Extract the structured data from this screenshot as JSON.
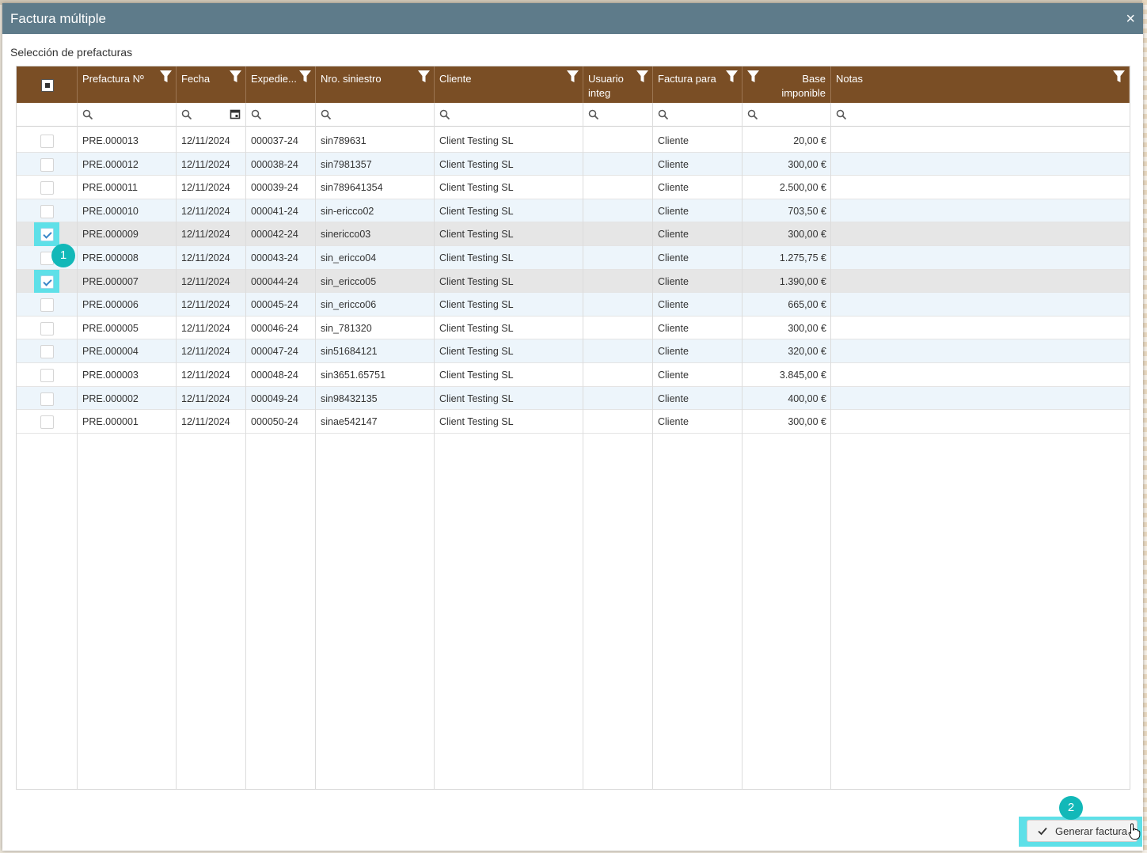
{
  "dialog": {
    "title": "Factura múltiple",
    "close_icon": "×"
  },
  "section_label": "Selección de prefacturas",
  "columns": [
    {
      "key": "prefactura",
      "label": "Prefactura Nº"
    },
    {
      "key": "fecha",
      "label": "Fecha"
    },
    {
      "key": "expediente",
      "label": "Expedie..."
    },
    {
      "key": "siniestro",
      "label": "Nro. siniestro"
    },
    {
      "key": "cliente",
      "label": "Cliente"
    },
    {
      "key": "usuario",
      "label": "Usuario integ"
    },
    {
      "key": "factura_para",
      "label": "Factura para"
    },
    {
      "key": "base",
      "label": "Base imponible"
    },
    {
      "key": "notas",
      "label": "Notas"
    }
  ],
  "rows": [
    {
      "checked": false,
      "prefactura": "PRE.000013",
      "fecha": "12/11/2024",
      "expediente": "000037-24",
      "siniestro": "sin789631",
      "cliente": "Client Testing SL",
      "usuario": "",
      "factura_para": "Cliente",
      "base": "20,00 €",
      "notas": ""
    },
    {
      "checked": false,
      "prefactura": "PRE.000012",
      "fecha": "12/11/2024",
      "expediente": "000038-24",
      "siniestro": "sin7981357",
      "cliente": "Client Testing SL",
      "usuario": "",
      "factura_para": "Cliente",
      "base": "300,00 €",
      "notas": ""
    },
    {
      "checked": false,
      "prefactura": "PRE.000011",
      "fecha": "12/11/2024",
      "expediente": "000039-24",
      "siniestro": "sin789641354",
      "cliente": "Client Testing SL",
      "usuario": "",
      "factura_para": "Cliente",
      "base": "2.500,00 €",
      "notas": ""
    },
    {
      "checked": false,
      "prefactura": "PRE.000010",
      "fecha": "12/11/2024",
      "expediente": "000041-24",
      "siniestro": "sin-ericco02",
      "cliente": "Client Testing SL",
      "usuario": "",
      "factura_para": "Cliente",
      "base": "703,50 €",
      "notas": ""
    },
    {
      "checked": true,
      "prefactura": "PRE.000009",
      "fecha": "12/11/2024",
      "expediente": "000042-24",
      "siniestro": "sinericco03",
      "cliente": "Client Testing SL",
      "usuario": "",
      "factura_para": "Cliente",
      "base": "300,00 €",
      "notas": ""
    },
    {
      "checked": false,
      "prefactura": "PRE.000008",
      "fecha": "12/11/2024",
      "expediente": "000043-24",
      "siniestro": "sin_ericco04",
      "cliente": "Client Testing SL",
      "usuario": "",
      "factura_para": "Cliente",
      "base": "1.275,75 €",
      "notas": ""
    },
    {
      "checked": true,
      "prefactura": "PRE.000007",
      "fecha": "12/11/2024",
      "expediente": "000044-24",
      "siniestro": "sin_ericco05",
      "cliente": "Client Testing SL",
      "usuario": "",
      "factura_para": "Cliente",
      "base": "1.390,00 €",
      "notas": ""
    },
    {
      "checked": false,
      "prefactura": "PRE.000006",
      "fecha": "12/11/2024",
      "expediente": "000045-24",
      "siniestro": "sin_ericco06",
      "cliente": "Client Testing SL",
      "usuario": "",
      "factura_para": "Cliente",
      "base": "665,00 €",
      "notas": ""
    },
    {
      "checked": false,
      "prefactura": "PRE.000005",
      "fecha": "12/11/2024",
      "expediente": "000046-24",
      "siniestro": "sin_781320",
      "cliente": "Client Testing SL",
      "usuario": "",
      "factura_para": "Cliente",
      "base": "300,00 €",
      "notas": ""
    },
    {
      "checked": false,
      "prefactura": "PRE.000004",
      "fecha": "12/11/2024",
      "expediente": "000047-24",
      "siniestro": "sin51684121",
      "cliente": "Client Testing SL",
      "usuario": "",
      "factura_para": "Cliente",
      "base": "320,00 €",
      "notas": ""
    },
    {
      "checked": false,
      "prefactura": "PRE.000003",
      "fecha": "12/11/2024",
      "expediente": "000048-24",
      "siniestro": "sin3651.65751",
      "cliente": "Client Testing SL",
      "usuario": "",
      "factura_para": "Cliente",
      "base": "3.845,00 €",
      "notas": ""
    },
    {
      "checked": false,
      "prefactura": "PRE.000002",
      "fecha": "12/11/2024",
      "expediente": "000049-24",
      "siniestro": "sin98432135",
      "cliente": "Client Testing SL",
      "usuario": "",
      "factura_para": "Cliente",
      "base": "400,00 €",
      "notas": ""
    },
    {
      "checked": false,
      "prefactura": "PRE.000001",
      "fecha": "12/11/2024",
      "expediente": "000050-24",
      "siniestro": "sinae542147",
      "cliente": "Client Testing SL",
      "usuario": "",
      "factura_para": "Cliente",
      "base": "300,00 €",
      "notas": ""
    }
  ],
  "annotations": {
    "step1": "1",
    "step2": "2"
  },
  "actions": {
    "generate_label": "Generar factura"
  },
  "colors": {
    "titlebar": "#5e7b8a",
    "header": "#7a4e25",
    "highlight": "#5ee0e8",
    "badge": "#12b8b8",
    "row_alt": "#edf5fb"
  },
  "icons": [
    "close-icon",
    "filter-icon",
    "search-icon",
    "calendar-icon",
    "checkmark-icon",
    "hand-cursor-icon"
  ]
}
